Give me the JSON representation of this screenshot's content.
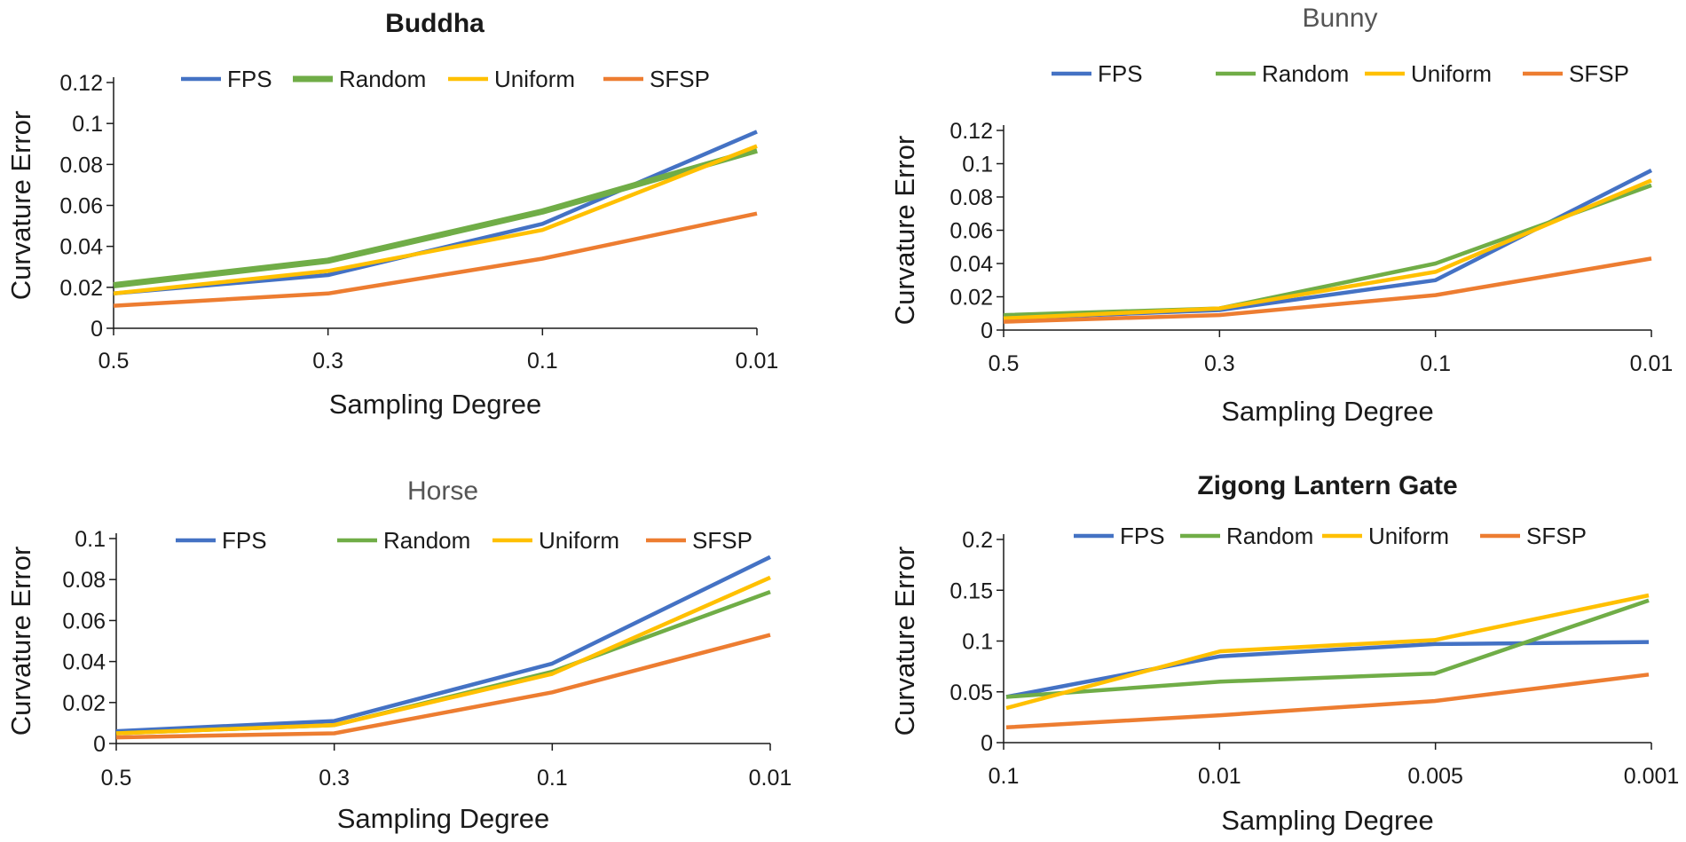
{
  "colors": {
    "FPS": "#4472c4",
    "Random": "#70ad47",
    "Uniform": "#ffc000",
    "SFSP": "#ed7d31",
    "axis": "#1a1a1a"
  },
  "chart_data": [
    {
      "type": "line",
      "title": "Buddha",
      "xlabel": "Sampling Degree",
      "ylabel": "Curvature Error",
      "categories": [
        "0.5",
        "0.3",
        "0.1",
        "0.01"
      ],
      "ylim": [
        0,
        0.12
      ],
      "yticks": [
        "0",
        "0.02",
        "0.04",
        "0.06",
        "0.08",
        "0.1",
        "0.12"
      ],
      "legend": [
        "FPS",
        "Random",
        "Uniform",
        "SFSP"
      ],
      "series": [
        {
          "name": "FPS",
          "values": [
            0.017,
            0.026,
            0.051,
            0.096
          ]
        },
        {
          "name": "Random",
          "values": [
            0.021,
            0.033,
            0.057,
            0.087
          ]
        },
        {
          "name": "Uniform",
          "values": [
            0.017,
            0.028,
            0.048,
            0.089
          ]
        },
        {
          "name": "SFSP",
          "values": [
            0.011,
            0.017,
            0.034,
            0.056
          ]
        }
      ]
    },
    {
      "type": "line",
      "title": "Bunny",
      "xlabel": "Sampling Degree",
      "ylabel": "Curvature Error",
      "categories": [
        "0.5",
        "0.3",
        "0.1",
        "0.01"
      ],
      "ylim": [
        0,
        0.12
      ],
      "yticks": [
        "0",
        "0.02",
        "0.04",
        "0.06",
        "0.08",
        "0.1",
        "0.12"
      ],
      "legend": [
        "FPS",
        "Random",
        "Uniform",
        "SFSP"
      ],
      "series": [
        {
          "name": "FPS",
          "values": [
            0.007,
            0.012,
            0.03,
            0.096
          ]
        },
        {
          "name": "Random",
          "values": [
            0.009,
            0.013,
            0.04,
            0.087
          ]
        },
        {
          "name": "Uniform",
          "values": [
            0.007,
            0.013,
            0.035,
            0.09
          ]
        },
        {
          "name": "SFSP",
          "values": [
            0.005,
            0.009,
            0.021,
            0.043
          ]
        }
      ]
    },
    {
      "type": "line",
      "title": "Horse",
      "xlabel": "Sampling Degree",
      "ylabel": "Curvature Error",
      "categories": [
        "0.5",
        "0.3",
        "0.1",
        "0.01"
      ],
      "ylim": [
        0,
        0.1
      ],
      "yticks": [
        "0",
        "0.02",
        "0.04",
        "0.06",
        "0.08",
        "0.1"
      ],
      "legend": [
        "FPS",
        "Random",
        "Uniform",
        "SFSP"
      ],
      "series": [
        {
          "name": "FPS",
          "values": [
            0.006,
            0.011,
            0.039,
            0.091
          ]
        },
        {
          "name": "Random",
          "values": [
            0.005,
            0.009,
            0.035,
            0.074
          ]
        },
        {
          "name": "Uniform",
          "values": [
            0.005,
            0.009,
            0.034,
            0.081
          ]
        },
        {
          "name": "SFSP",
          "values": [
            0.003,
            0.005,
            0.025,
            0.053
          ]
        }
      ]
    },
    {
      "type": "line",
      "title": "Zigong Lantern Gate",
      "xlabel": "Sampling Degree",
      "ylabel": "Curvature Error",
      "categories": [
        "0.1",
        "0.01",
        "0.005",
        "0.001"
      ],
      "ylim": [
        0,
        0.2
      ],
      "yticks": [
        "0",
        "0.05",
        "0.1",
        "0.15",
        "0.2"
      ],
      "legend": [
        "FPS",
        "Random",
        "Uniform",
        "SFSP"
      ],
      "series": [
        {
          "name": "FPS",
          "values": [
            0.045,
            0.085,
            0.097,
            0.099
          ]
        },
        {
          "name": "Random",
          "values": [
            0.045,
            0.06,
            0.068,
            0.14
          ]
        },
        {
          "name": "Uniform",
          "values": [
            0.034,
            0.09,
            0.101,
            0.145
          ]
        },
        {
          "name": "SFSP",
          "values": [
            0.015,
            0.027,
            0.041,
            0.067
          ]
        }
      ]
    }
  ]
}
